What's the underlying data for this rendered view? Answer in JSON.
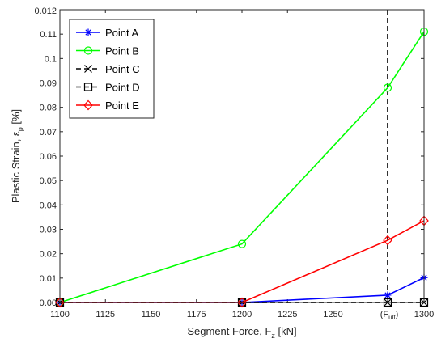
{
  "chart_data": {
    "type": "line",
    "title": "",
    "xlabel": {
      "main": "Segment Force, F",
      "sub": "z",
      "suffix": " [kN]"
    },
    "ylabel": {
      "main": "Plastic Strain, ε",
      "sub": "p",
      "suffix": " [%]"
    },
    "xlim": [
      1100,
      1300
    ],
    "ylim": [
      0,
      0.12
    ],
    "x_ticks": [
      {
        "value": 1100,
        "label": "1100"
      },
      {
        "value": 1125,
        "label": "1125"
      },
      {
        "value": 1150,
        "label": "1150"
      },
      {
        "value": 1175,
        "label": "1175"
      },
      {
        "value": 1200,
        "label": "1200"
      },
      {
        "value": 1225,
        "label": "1225"
      },
      {
        "value": 1250,
        "label": "1250"
      },
      {
        "value": 1300,
        "label": "1300"
      }
    ],
    "x_special_tick": {
      "value": 1280,
      "label": "(F",
      "sub": "ult",
      "close": ")"
    },
    "y_ticks": [
      {
        "value": 0,
        "label": "0.00"
      },
      {
        "value": 0.01,
        "label": "0.01"
      },
      {
        "value": 0.02,
        "label": "0.02"
      },
      {
        "value": 0.03,
        "label": "0.03"
      },
      {
        "value": 0.04,
        "label": "0.04"
      },
      {
        "value": 0.05,
        "label": "0.05"
      },
      {
        "value": 0.06,
        "label": "0.06"
      },
      {
        "value": 0.07,
        "label": "0.07"
      },
      {
        "value": 0.08,
        "label": "0.08"
      },
      {
        "value": 0.09,
        "label": "0.09"
      },
      {
        "value": 0.1,
        "label": "0.1"
      },
      {
        "value": 0.11,
        "label": "0.11"
      }
    ],
    "y_top_label": "0.012",
    "grid": false,
    "legend_position": "top-left",
    "vertical_marker": {
      "x": 1280,
      "style": "dashed",
      "color": "#000000"
    },
    "series": [
      {
        "name": "Point A",
        "color": "#0000ff",
        "marker": "asterisk",
        "dash": "solid",
        "x": [
          1100,
          1200,
          1280,
          1300
        ],
        "y": [
          0,
          0,
          0.003,
          0.0102
        ]
      },
      {
        "name": "Point B",
        "color": "#00ff00",
        "marker": "circle",
        "dash": "solid",
        "x": [
          1100,
          1200,
          1280,
          1300
        ],
        "y": [
          0,
          0.024,
          0.088,
          0.111
        ]
      },
      {
        "name": "Point C",
        "color": "#000000",
        "marker": "x",
        "dash": "dashed",
        "x": [
          1100,
          1200,
          1280,
          1300
        ],
        "y": [
          0,
          0,
          0,
          0
        ]
      },
      {
        "name": "Point D",
        "color": "#000000",
        "marker": "square",
        "dash": "dashed",
        "x": [
          1100,
          1200,
          1280,
          1300
        ],
        "y": [
          0,
          0,
          0,
          0
        ]
      },
      {
        "name": "Point E",
        "color": "#ff0000",
        "marker": "diamond",
        "dash": "solid",
        "x": [
          1100,
          1200,
          1280,
          1300
        ],
        "y": [
          0,
          0,
          0.0255,
          0.0335
        ]
      }
    ]
  }
}
